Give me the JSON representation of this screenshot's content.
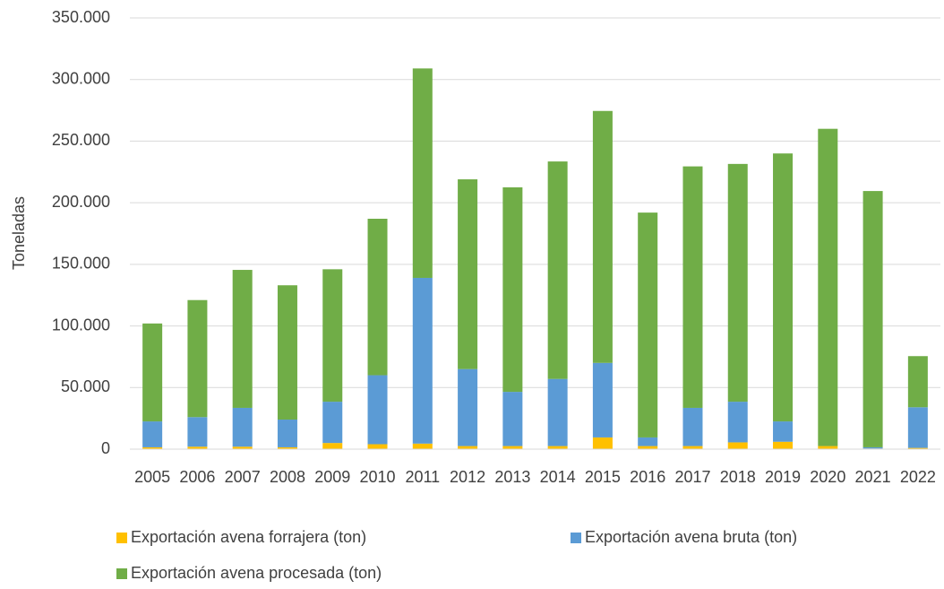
{
  "chart_data": {
    "type": "stacked_bar",
    "y_label": "Toneladas",
    "categories": [
      "2005",
      "2006",
      "2007",
      "2008",
      "2009",
      "2010",
      "2011",
      "2012",
      "2013",
      "2014",
      "2015",
      "2016",
      "2017",
      "2018",
      "2019",
      "2020",
      "2021",
      "2022"
    ],
    "series": [
      {
        "name": "Exportación avena forrajera (ton)",
        "color": "#ffc000",
        "values": [
          1500,
          2000,
          2000,
          1500,
          5000,
          4000,
          4500,
          2500,
          2500,
          2500,
          9500,
          2500,
          2500,
          5500,
          6000,
          2500,
          500,
          1000
        ]
      },
      {
        "name": "Exportación avena bruta (ton)",
        "color": "#5b9bd5",
        "values": [
          21000,
          24000,
          31500,
          22500,
          33500,
          56000,
          134500,
          62500,
          44000,
          54500,
          60500,
          7000,
          31000,
          33000,
          16500,
          0,
          1000,
          33000
        ]
      },
      {
        "name": "Exportación avena procesada (ton)",
        "color": "#70ad47",
        "values": [
          79500,
          95000,
          112000,
          109000,
          107500,
          127000,
          170000,
          154000,
          166000,
          176500,
          204500,
          182500,
          196000,
          193000,
          217500,
          257500,
          208000,
          41500
        ]
      }
    ],
    "ylim": [
      0,
      350000
    ],
    "yticks": [
      0,
      {
        "value": 50000,
        "label": "50.000"
      },
      {
        "value": 100000,
        "label": "100.000"
      },
      {
        "value": 150000,
        "label": "150.000"
      },
      {
        "value": 200000,
        "label": "200.000"
      },
      {
        "value": 250000,
        "label": "250.000"
      },
      {
        "value": 300000,
        "label": "300.000"
      },
      {
        "value": 350000,
        "label": "350.000"
      }
    ],
    "grid": true
  }
}
